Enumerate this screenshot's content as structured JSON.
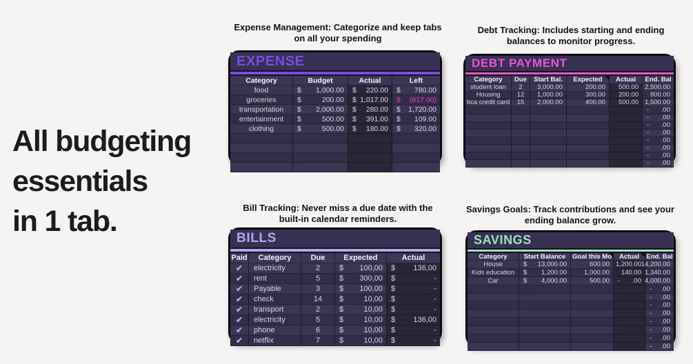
{
  "headline": {
    "lines": [
      "All budgeting",
      "essentials",
      "in 1 tab."
    ]
  },
  "colors": {
    "page_background": "#f6f4f3",
    "card_background": "#342f47",
    "negative_value": "#e83ad2",
    "checkmark": "#b7a6ee",
    "expense_accent": "#7b4aeb",
    "debt_accent": "#ef52d9",
    "bills_accent": "#b4a5ee",
    "savings_accent": "#9de0c2"
  },
  "cards": [
    {
      "name": "expense",
      "caption_line1": "Expense Management: Categorize and keep tabs",
      "caption_line2": "on all your spending",
      "title": "EXPENSE",
      "accent": "#7b4aeb",
      "columns": [
        {
          "label": "Category",
          "w": 91,
          "align": "center"
        },
        {
          "label": "Budget",
          "w": 80
        },
        {
          "label": "Actual",
          "w": 64,
          "band": true
        },
        {
          "label": "Left",
          "w": 69
        }
      ],
      "rows": [
        [
          {
            "t": "food"
          },
          {
            "p": "$",
            "t": "1,000.00"
          },
          {
            "p": "$",
            "t": "220.00"
          },
          {
            "p": "$",
            "t": "780.00"
          }
        ],
        [
          {
            "t": "groceries"
          },
          {
            "p": "$",
            "t": "200.00"
          },
          {
            "p": "$",
            "t": "1,017.00"
          },
          {
            "p": "$",
            "t": "(817.00)",
            "neg": true
          }
        ],
        [
          {
            "t": "transportation"
          },
          {
            "p": "$",
            "t": "2,000.00"
          },
          {
            "p": "$",
            "t": "280.00"
          },
          {
            "p": "$",
            "t": "1,720.00"
          }
        ],
        [
          {
            "t": "entertainment"
          },
          {
            "p": "$",
            "t": "500.00"
          },
          {
            "p": "$",
            "t": "391.00"
          },
          {
            "p": "$",
            "t": "109.00"
          }
        ],
        [
          {
            "t": "clothing"
          },
          {
            "p": "$",
            "t": "500.00"
          },
          {
            "p": "$",
            "t": "180.00"
          },
          {
            "p": "$",
            "t": "320.00"
          }
        ],
        [
          {},
          {},
          {},
          {}
        ],
        [
          {},
          {},
          {},
          {}
        ],
        [
          {},
          {},
          {},
          {}
        ],
        [
          {},
          {},
          {},
          {}
        ]
      ]
    },
    {
      "name": "debt",
      "caption_line1": "Debt Tracking: Includes starting and ending",
      "caption_line2": "balances to monitor progress.",
      "title": "DEBT PAYMENT",
      "accent": "#ef52d9",
      "columns": [
        {
          "label": "Category",
          "w": 67,
          "align": "center"
        },
        {
          "label": "Due",
          "w": 27,
          "align": "center"
        },
        {
          "label": "Start Bal.",
          "w": 53,
          "align": "right"
        },
        {
          "label": "Expected",
          "w": 62,
          "align": "right",
          "note": true
        },
        {
          "label": "Actual",
          "w": 48,
          "align": "right",
          "band": true
        },
        {
          "label": "End. Bal",
          "w": 44,
          "align": "right"
        }
      ],
      "rows": [
        [
          {
            "t": "student loan"
          },
          {
            "t": "2"
          },
          {
            "t": "3,000.00"
          },
          {
            "t": "200.00"
          },
          {
            "t": "500.00"
          },
          {
            "t": "2,500.00"
          }
        ],
        [
          {
            "t": "Housing"
          },
          {
            "t": "12"
          },
          {
            "t": "1,000.00"
          },
          {
            "t": "300.00"
          },
          {
            "t": "200.00"
          },
          {
            "t": "800.00"
          }
        ],
        [
          {
            "t": "bca credit card"
          },
          {
            "t": "15"
          },
          {
            "t": "2,000.00"
          },
          {
            "t": "400.00"
          },
          {
            "t": "500.00"
          },
          {
            "t": "1,500.00"
          }
        ],
        [
          {},
          {},
          {},
          {},
          {},
          {
            "p": "-",
            "t": ".00"
          }
        ],
        [
          {},
          {},
          {},
          {},
          {},
          {
            "p": "-",
            "t": ".00"
          }
        ],
        [
          {},
          {},
          {},
          {},
          {},
          {
            "p": "-",
            "t": ".00"
          }
        ],
        [
          {},
          {},
          {},
          {},
          {},
          {
            "p": "-",
            "t": ".00"
          }
        ],
        [
          {},
          {},
          {},
          {},
          {},
          {
            "p": "-",
            "t": ".00"
          }
        ],
        [
          {},
          {},
          {},
          {},
          {},
          {
            "p": "-",
            "t": ".00"
          }
        ],
        [
          {},
          {},
          {},
          {},
          {},
          {
            "p": "-",
            "t": ".00"
          }
        ],
        [
          {},
          {},
          {},
          {},
          {},
          {
            "p": "-",
            "t": ".00"
          }
        ]
      ]
    },
    {
      "name": "bills",
      "caption_line1": "Bill Tracking: Never miss a due date with the",
      "caption_line2": "built-in calendar reminders.",
      "title": "BILLS",
      "accent": "#b4a5ee",
      "columns": [
        {
          "label": "Paid",
          "w": 27,
          "align": "center"
        },
        {
          "label": "Category",
          "w": 76,
          "align": "left"
        },
        {
          "label": "Due",
          "w": 49,
          "align": "center"
        },
        {
          "label": "Expected",
          "w": 75
        },
        {
          "label": "Actual",
          "w": 77,
          "band": true
        }
      ],
      "rows": [
        [
          {
            "t": "✔",
            "check": true
          },
          {
            "t": "electricity"
          },
          {
            "t": "2"
          },
          {
            "p": "$",
            "t": "100,00"
          },
          {
            "p": "$",
            "t": "136,00"
          }
        ],
        [
          {
            "t": "✔",
            "check": true
          },
          {
            "t": "rent"
          },
          {
            "t": "5"
          },
          {
            "p": "$",
            "t": "300,00"
          },
          {
            "p": "$",
            "t": "-"
          }
        ],
        [
          {
            "t": "✔",
            "check": true
          },
          {
            "t": "Payable"
          },
          {
            "t": "3"
          },
          {
            "p": "$",
            "t": "100,00"
          },
          {
            "p": "$",
            "t": "-"
          }
        ],
        [
          {
            "t": "✔",
            "check": true
          },
          {
            "t": "check"
          },
          {
            "t": "14"
          },
          {
            "p": "$",
            "t": "10,00"
          },
          {
            "p": "$",
            "t": "-"
          }
        ],
        [
          {
            "t": "✔",
            "check": true
          },
          {
            "t": "transport"
          },
          {
            "t": "2"
          },
          {
            "p": "$",
            "t": "10,00"
          },
          {
            "p": "$",
            "t": "-"
          }
        ],
        [
          {
            "t": "✔",
            "check": true
          },
          {
            "t": "electricity"
          },
          {
            "t": "5"
          },
          {
            "p": "$",
            "t": "10,00"
          },
          {
            "p": "$",
            "t": "136,00"
          }
        ],
        [
          {
            "t": "✔",
            "check": true
          },
          {
            "t": "phone"
          },
          {
            "t": "6"
          },
          {
            "p": "$",
            "t": "10,00"
          },
          {
            "p": "$",
            "t": "-"
          }
        ],
        [
          {
            "t": "✔",
            "check": true
          },
          {
            "t": "netflix"
          },
          {
            "t": "7"
          },
          {
            "p": "$",
            "t": "10,00"
          },
          {
            "p": "$",
            "t": "-"
          }
        ]
      ]
    },
    {
      "name": "savings",
      "caption_line1": "Savings Goals: Track contributions and see your",
      "caption_line2": "ending balance grow.",
      "title": "SAVINGS",
      "accent": "#9de0c2",
      "columns": [
        {
          "label": "Category",
          "w": 75,
          "align": "center"
        },
        {
          "label": "Start Balance",
          "w": 75
        },
        {
          "label": "Goal this Mo",
          "w": 62,
          "align": "right",
          "note": true
        },
        {
          "label": "Actual",
          "w": 46,
          "align": "right",
          "band": true,
          "note": true
        },
        {
          "label": "End. Bal",
          "w": 41,
          "align": "right"
        }
      ],
      "rows": [
        [
          {
            "t": "House"
          },
          {
            "p": "$",
            "t": "13,000.00"
          },
          {
            "t": "600.00"
          },
          {
            "t": "1,200.00"
          },
          {
            "t": "14,200.00"
          }
        ],
        [
          {
            "t": "Kids education"
          },
          {
            "p": "$",
            "t": "1,200.00"
          },
          {
            "t": "1,000.00"
          },
          {
            "t": "140.00"
          },
          {
            "t": "1,340.00"
          }
        ],
        [
          {
            "t": "Car"
          },
          {
            "p": "$",
            "t": "4,000.00"
          },
          {
            "t": "500.00"
          },
          {
            "p": "-",
            "t": ".00"
          },
          {
            "t": "4,000.00"
          }
        ],
        [
          {},
          {},
          {},
          {},
          {
            "p": "-",
            "t": ".00"
          }
        ],
        [
          {},
          {},
          {},
          {},
          {
            "p": "-",
            "t": ".00"
          }
        ],
        [
          {},
          {},
          {},
          {},
          {
            "p": "-",
            "t": ".00"
          }
        ],
        [
          {},
          {},
          {},
          {},
          {
            "p": "-",
            "t": ".00"
          }
        ],
        [
          {},
          {},
          {},
          {},
          {
            "p": "-",
            "t": ".00"
          }
        ],
        [
          {},
          {},
          {},
          {},
          {
            "p": "-",
            "t": ".00"
          }
        ],
        [
          {},
          {},
          {},
          {},
          {
            "p": "-",
            "t": ".00"
          }
        ],
        [
          {},
          {},
          {},
          {},
          {
            "p": "-",
            "t": ".00"
          }
        ]
      ]
    }
  ]
}
